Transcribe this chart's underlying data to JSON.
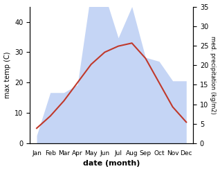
{
  "months": [
    "Jan",
    "Feb",
    "Mar",
    "Apr",
    "May",
    "Jun",
    "Jul",
    "Aug",
    "Sep",
    "Oct",
    "Nov",
    "Dec"
  ],
  "max_temp": [
    5,
    9,
    14,
    20,
    26,
    30,
    32,
    33,
    28,
    20,
    12,
    7
  ],
  "precipitation": [
    2,
    13,
    13,
    15,
    39,
    38,
    27,
    35,
    22,
    21,
    16,
    16
  ],
  "temp_color": "#c0392b",
  "precip_fill_color": "#c5d5f5",
  "temp_ylim": [
    0,
    45
  ],
  "precip_ylim": [
    0,
    35
  ],
  "temp_yticks": [
    0,
    10,
    20,
    30,
    40
  ],
  "precip_yticks": [
    0,
    5,
    10,
    15,
    20,
    25,
    30,
    35
  ],
  "xlabel": "date (month)",
  "ylabel_left": "max temp (C)",
  "ylabel_right": "med. precipitation (kg/m2)",
  "figsize": [
    3.18,
    2.47
  ],
  "dpi": 100
}
